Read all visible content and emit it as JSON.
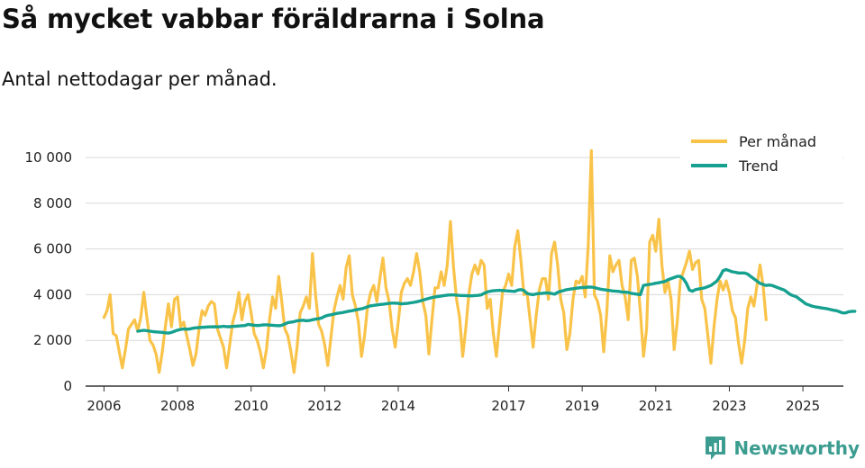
{
  "header": {
    "title": "Så mycket vabbar föräldrarna i Solna",
    "subtitle": "Antal nettodagar per månad."
  },
  "brand": {
    "name": "Newsworthy",
    "icon": "newsworthy-logo-icon"
  },
  "colors": {
    "monthly": "#f9c349",
    "trend": "#16a08f",
    "grid": "#d8d8d8",
    "brand": "#3b9c8f"
  },
  "chart_data": {
    "type": "line",
    "title": "Så mycket vabbar föräldrarna i Solna",
    "subtitle": "Antal nettodagar per månad.",
    "xlabel": "",
    "ylabel": "",
    "xlim": [
      2005.5,
      2026.1
    ],
    "ylim": [
      0,
      10000
    ],
    "yticks": [
      0,
      2000,
      4000,
      6000,
      8000,
      10000
    ],
    "ytick_labels": [
      "0",
      "2 000",
      "4 000",
      "6 000",
      "8 000",
      "10 000"
    ],
    "xticks": [
      2006,
      2008,
      2010,
      2012,
      2014,
      2017,
      2019,
      2021,
      2023,
      2025
    ],
    "xtick_labels": [
      "2006",
      "2008",
      "2010",
      "2012",
      "2014",
      "2017",
      "2019",
      "2021",
      "2023",
      "2025"
    ],
    "grid": "horizontal",
    "legend_position": "top-right",
    "series": [
      {
        "name": "Per månad",
        "start_year": 2006,
        "start_month": 1,
        "values": [
          3000,
          3300,
          4000,
          2300,
          2200,
          1500,
          800,
          1600,
          2500,
          2700,
          2900,
          2400,
          3000,
          4100,
          3000,
          2000,
          1800,
          1400,
          600,
          1500,
          2600,
          3600,
          2600,
          3800,
          3900,
          2600,
          2800,
          2200,
          1600,
          900,
          1400,
          2500,
          3300,
          3100,
          3500,
          3700,
          3600,
          2500,
          2100,
          1700,
          800,
          1800,
          2800,
          3300,
          4100,
          2900,
          3700,
          4000,
          3200,
          2300,
          2000,
          1500,
          800,
          1600,
          2900,
          3900,
          3400,
          4800,
          3700,
          2500,
          2200,
          1500,
          600,
          1700,
          3200,
          3500,
          3900,
          3400,
          5800,
          4000,
          2700,
          2400,
          1800,
          900,
          2100,
          3300,
          3900,
          4400,
          3800,
          5200,
          5700,
          4000,
          3500,
          2800,
          1300,
          2200,
          3500,
          4100,
          4400,
          3700,
          4700,
          5600,
          4300,
          3700,
          2500,
          1700,
          2800,
          4100,
          4500,
          4700,
          4400,
          5000,
          5800,
          5000,
          3700,
          3100,
          1400,
          2900,
          4300,
          4300,
          5000,
          4400,
          5300,
          7200,
          5200,
          3800,
          3000,
          1300,
          2500,
          4000,
          4900,
          5300,
          4900,
          5500,
          5300,
          3400,
          3800,
          2300,
          1300,
          2700,
          4100,
          4400,
          4900,
          4400,
          6100,
          6800,
          5500,
          4000,
          4100,
          2900,
          1700,
          3100,
          4200,
          4700,
          4700,
          3800,
          5800,
          6300,
          5300,
          3800,
          3200,
          1600,
          2300,
          3800,
          4600,
          4500,
          4800,
          3900,
          6200,
          10300,
          4000,
          3700,
          3100,
          1500,
          3200,
          5700,
          5000,
          5300,
          5500,
          4400,
          3900,
          2900,
          5500,
          5600,
          4800,
          3200,
          1300,
          2500,
          6300,
          6600,
          5900,
          7300,
          5300,
          4100,
          4600,
          3800,
          1600,
          2800,
          4600,
          5000,
          5400,
          5900,
          5100,
          5400,
          5500,
          3800,
          3400,
          2200,
          1000,
          2600,
          3800,
          4600,
          4200,
          4600,
          4100,
          3300,
          3000,
          1900,
          1000,
          2000,
          3400,
          3900,
          3500,
          4400,
          5300,
          4400,
          2900
        ]
      },
      {
        "name": "Trend",
        "start_year": 2006.92,
        "step": 0.0833,
        "values": [
          2400,
          2420,
          2440,
          2420,
          2400,
          2380,
          2370,
          2360,
          2350,
          2330,
          2320,
          2350,
          2400,
          2450,
          2480,
          2500,
          2490,
          2500,
          2530,
          2550,
          2560,
          2570,
          2580,
          2590,
          2590,
          2600,
          2590,
          2600,
          2620,
          2600,
          2600,
          2610,
          2620,
          2630,
          2640,
          2650,
          2700,
          2680,
          2660,
          2650,
          2660,
          2680,
          2680,
          2670,
          2660,
          2650,
          2640,
          2660,
          2720,
          2780,
          2800,
          2820,
          2860,
          2870,
          2880,
          2860,
          2870,
          2900,
          2930,
          2950,
          2980,
          3050,
          3100,
          3120,
          3150,
          3180,
          3200,
          3220,
          3250,
          3280,
          3300,
          3330,
          3360,
          3380,
          3420,
          3470,
          3510,
          3530,
          3550,
          3570,
          3580,
          3600,
          3620,
          3630,
          3630,
          3620,
          3600,
          3610,
          3620,
          3640,
          3660,
          3690,
          3720,
          3760,
          3800,
          3840,
          3870,
          3900,
          3920,
          3940,
          3960,
          3980,
          3990,
          3990,
          3980,
          3970,
          3960,
          3960,
          3950,
          3950,
          3960,
          3970,
          3990,
          4060,
          4120,
          4150,
          4170,
          4180,
          4190,
          4180,
          4170,
          4160,
          4150,
          4140,
          4200,
          4220,
          4180,
          4050,
          4020,
          4000,
          4030,
          4050,
          4060,
          4080,
          4070,
          4050,
          4020,
          4100,
          4150,
          4180,
          4220,
          4240,
          4260,
          4280,
          4300,
          4310,
          4320,
          4330,
          4330,
          4310,
          4270,
          4240,
          4220,
          4200,
          4180,
          4160,
          4150,
          4140,
          4120,
          4110,
          4100,
          4060,
          4040,
          4020,
          4000,
          4400,
          4430,
          4450,
          4470,
          4500,
          4520,
          4550,
          4580,
          4650,
          4700,
          4750,
          4800,
          4800,
          4700,
          4500,
          4200,
          4150,
          4220,
          4250,
          4270,
          4300,
          4350,
          4400,
          4500,
          4600,
          4800,
          5050,
          5100,
          5050,
          5000,
          4980,
          4950,
          4950,
          4950,
          4900,
          4800,
          4700,
          4600,
          4500,
          4450,
          4400,
          4420,
          4400,
          4350,
          4300,
          4250,
          4200,
          4100,
          4000,
          3950,
          3900,
          3800,
          3700,
          3600,
          3550,
          3500,
          3470,
          3450,
          3420,
          3400,
          3380,
          3350,
          3320,
          3300,
          3250,
          3200,
          3200,
          3250,
          3270,
          3270
        ]
      }
    ]
  }
}
